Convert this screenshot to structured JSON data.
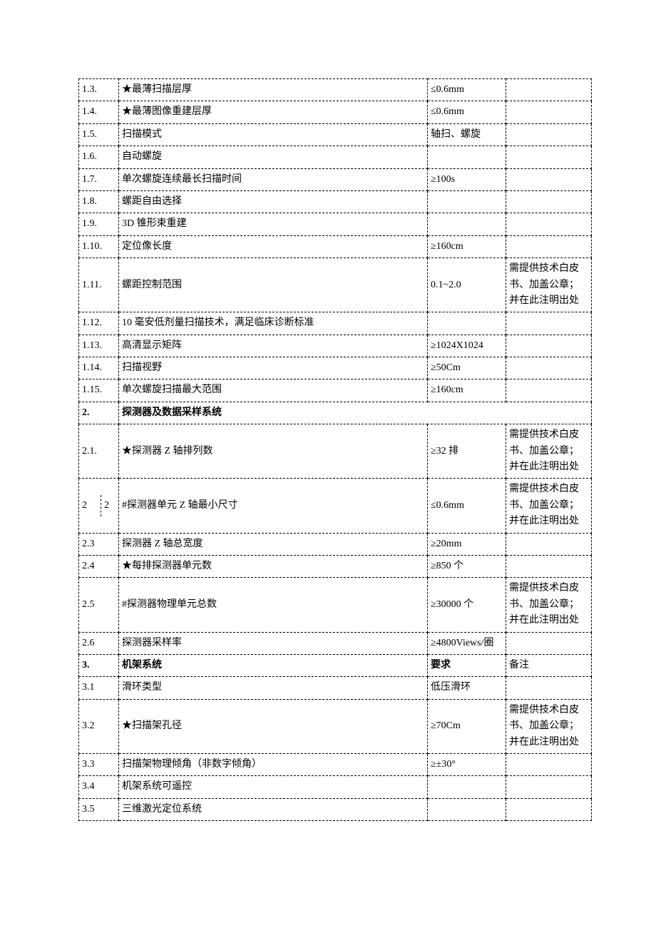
{
  "table": {
    "rows": [
      {
        "num": "1.3.",
        "name": "★最薄扫描层厚",
        "req": "≤0.6mm",
        "note": ""
      },
      {
        "num": "1.4.",
        "name": "★最薄图像重建层厚",
        "req": "≤0.6mm",
        "note": ""
      },
      {
        "num": "1.5.",
        "name": "扫描模式",
        "req": "轴扫、螺旋",
        "note": ""
      },
      {
        "num": "1.6.",
        "name": "自动螺旋",
        "req": "",
        "note": ""
      },
      {
        "num": "1.7.",
        "name": "单次螺旋连续最长扫描时间",
        "req": "≥100s",
        "note": ""
      },
      {
        "num": "1.8.",
        "name": "螺距自由选择",
        "req": "",
        "note": ""
      },
      {
        "num": "1.9.",
        "name": "3D 锥形束重建",
        "req": "",
        "note": ""
      },
      {
        "num": "1.10.",
        "name": "定位像长度",
        "req": "≥160cm",
        "note": ""
      },
      {
        "num": "1.11.",
        "name": "螺距控制范围",
        "req": "0.1~2.0",
        "note": "需提供技术白皮书、加盖公章；并在此注明出处"
      },
      {
        "num": "1.12.",
        "name": "10 毫安低剂量扫描技术，满足临床诊断标准",
        "req": "",
        "note": ""
      },
      {
        "num": "1.13.",
        "name": "高清显示矩阵",
        "req": "≥1024X1024",
        "note": ""
      },
      {
        "num": "1.14.",
        "name": "扫描视野",
        "req": "≥50Cm",
        "note": ""
      },
      {
        "num": "1.15.",
        "name": "单次螺旋扫描最大范围",
        "req": "≥160cm",
        "note": ""
      },
      {
        "num": "2.",
        "name": "探测器及数据采样系统",
        "req": "",
        "note": "",
        "bold": true,
        "span": true
      },
      {
        "num": "2.1.",
        "name": "★探测器 Z 轴排列数",
        "req": "≥32 排",
        "note": "需提供技术白皮书、加盖公章；并在此注明出处"
      },
      {
        "num": "2.2",
        "name": "#探测器单元 Z 轴最小尺寸",
        "req": "≤0.6mm",
        "note": "需提供技术白皮书、加盖公章；并在此注明出处",
        "split": true,
        "a": "2",
        "b": "2"
      },
      {
        "num": "2.3",
        "name": "探测器 Z 轴总宽度",
        "req": "≥20mm",
        "note": ""
      },
      {
        "num": "2.4",
        "name": "★每排探测器单元数",
        "req": "≥850 个",
        "note": ""
      },
      {
        "num": "2.5",
        "name": "#探测器物理单元总数",
        "req": "≥30000 个",
        "note": "需提供技术白皮书、加盖公章；并在此注明出处"
      },
      {
        "num": "2.6",
        "name": "探测器采样率",
        "req": "≥4800Views/圈",
        "note": ""
      },
      {
        "num": "3.",
        "name": "机架系统",
        "req": "要求",
        "note": "备注",
        "bold": true
      },
      {
        "num": "3.1",
        "name": "滑环类型",
        "req": "低压滑环",
        "note": ""
      },
      {
        "num": "3.2",
        "name": "★扫描架孔径",
        "req": "≥70Cm",
        "note": "需提供技术白皮书、加盖公章；并在此注明出处"
      },
      {
        "num": "3.3",
        "name": "扫描架物理倾角（非数字倾角）",
        "req": "≥±30°",
        "note": ""
      },
      {
        "num": "3.4",
        "name": "机架系统可遥控",
        "req": "",
        "note": ""
      },
      {
        "num": "3.5",
        "name": "三维激光定位系统",
        "req": "",
        "note": ""
      }
    ]
  }
}
